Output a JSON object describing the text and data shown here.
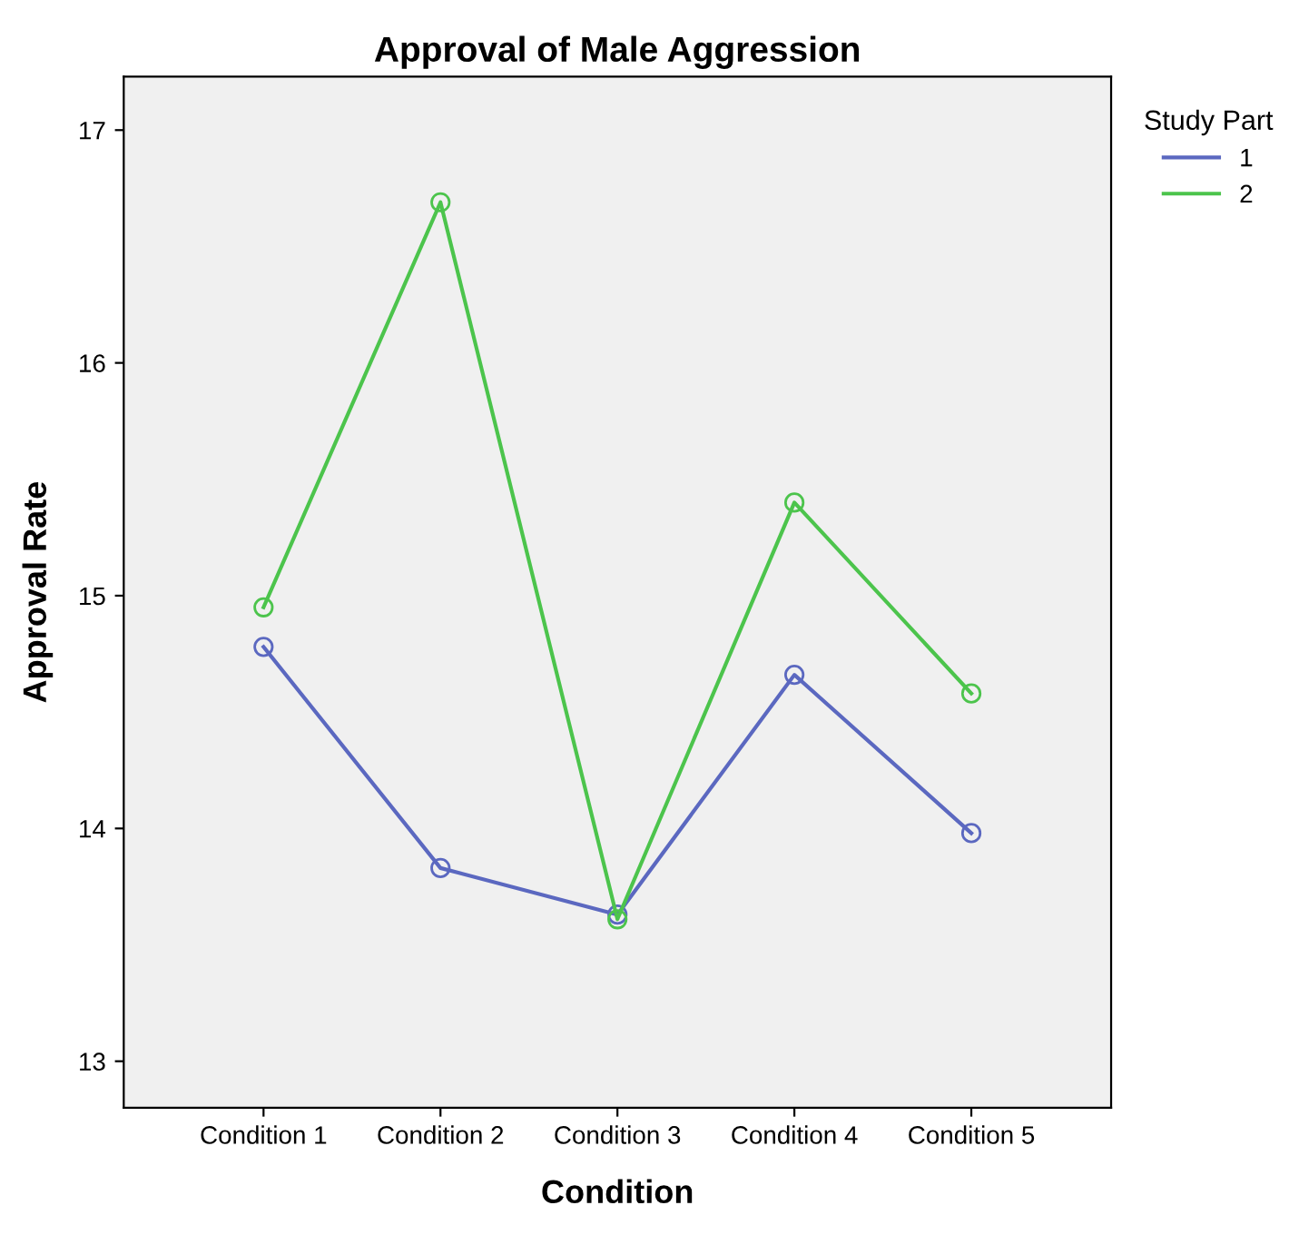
{
  "chart_data": {
    "type": "line",
    "title": "Approval of Male Aggression",
    "xlabel": "Condition",
    "ylabel": "Approval Rate",
    "legend_title": "Study Part",
    "categories": [
      "Condition 1",
      "Condition 2",
      "Condition 3",
      "Condition 4",
      "Condition 5"
    ],
    "series": [
      {
        "name": "1",
        "color": "#5b68c0",
        "values": [
          14.78,
          13.83,
          13.63,
          14.66,
          13.98
        ]
      },
      {
        "name": "2",
        "color": "#4cc44c",
        "values": [
          14.95,
          16.69,
          13.61,
          15.4,
          14.58
        ]
      }
    ],
    "ylim": [
      12.8,
      17.23
    ],
    "yticks": [
      13,
      14,
      15,
      16,
      17
    ],
    "grid": false,
    "legend": "right",
    "marker": "circle",
    "line_style": "solid"
  }
}
